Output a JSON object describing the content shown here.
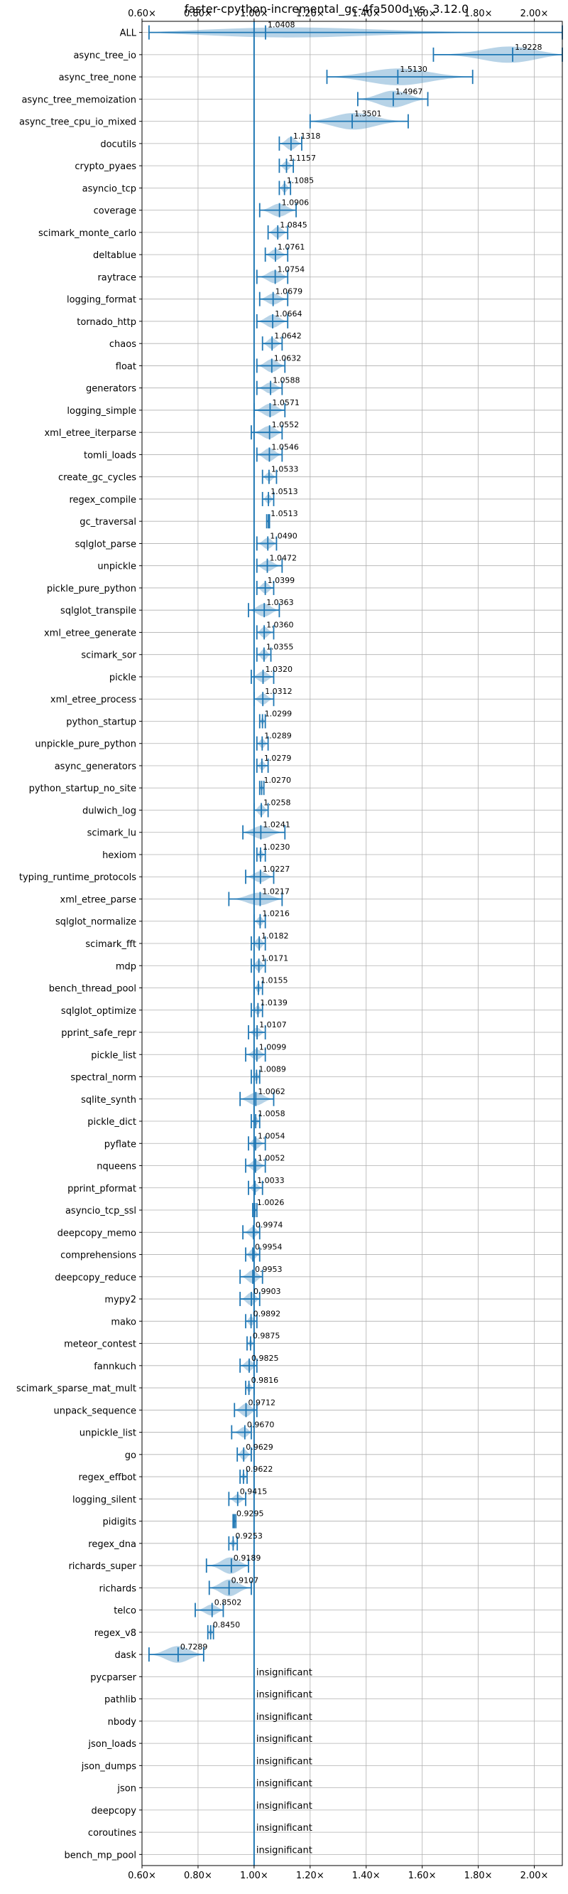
{
  "chart_data": {
    "type": "violin",
    "title": "faster-cpython-incremental_gc-4fa500d vs. 3.12.0",
    "xlim": [
      0.6,
      2.1
    ],
    "x_ticks": [
      0.6,
      0.8,
      1.0,
      1.2,
      1.4,
      1.6,
      1.8,
      2.0
    ],
    "x_tick_labels": [
      "0.60×",
      "0.80×",
      "1.00×",
      "1.20×",
      "1.40×",
      "1.60×",
      "1.80×",
      "2.00×"
    ],
    "reference_line": 1.0,
    "grid": true,
    "colors": {
      "violin": "#1f77b4",
      "grid": "#b0b0b0",
      "axis": "#000000"
    },
    "insignificant_label": "insignificant",
    "benchmarks": [
      {
        "name": "ALL",
        "mean": 1.0408,
        "min": 0.625,
        "max": 2.1,
        "width": 0.6
      },
      {
        "name": "async_tree_io",
        "mean": 1.9228,
        "min": 1.64,
        "max": 2.1,
        "width": 0.9
      },
      {
        "name": "async_tree_none",
        "mean": 1.513,
        "min": 1.26,
        "max": 1.78,
        "width": 0.9
      },
      {
        "name": "async_tree_memoization",
        "mean": 1.4967,
        "min": 1.37,
        "max": 1.62,
        "width": 0.9
      },
      {
        "name": "async_tree_cpu_io_mixed",
        "mean": 1.3501,
        "min": 1.2,
        "max": 1.55,
        "width": 0.9
      },
      {
        "name": "docutils",
        "mean": 1.1318,
        "min": 1.09,
        "max": 1.17,
        "width": 0.7
      },
      {
        "name": "crypto_pyaes",
        "mean": 1.1157,
        "min": 1.09,
        "max": 1.14,
        "width": 0.5
      },
      {
        "name": "asyncio_tcp",
        "mean": 1.1085,
        "min": 1.09,
        "max": 1.13,
        "width": 0.5
      },
      {
        "name": "coverage",
        "mean": 1.0906,
        "min": 1.02,
        "max": 1.15,
        "width": 0.7
      },
      {
        "name": "scimark_monte_carlo",
        "mean": 1.0845,
        "min": 1.05,
        "max": 1.12,
        "width": 0.6
      },
      {
        "name": "deltablue",
        "mean": 1.0761,
        "min": 1.04,
        "max": 1.12,
        "width": 0.6
      },
      {
        "name": "raytrace",
        "mean": 1.0754,
        "min": 1.01,
        "max": 1.12,
        "width": 0.7
      },
      {
        "name": "logging_format",
        "mean": 1.0679,
        "min": 1.02,
        "max": 1.12,
        "width": 0.6
      },
      {
        "name": "tornado_http",
        "mean": 1.0664,
        "min": 1.01,
        "max": 1.12,
        "width": 0.7
      },
      {
        "name": "chaos",
        "mean": 1.0642,
        "min": 1.03,
        "max": 1.1,
        "width": 0.6
      },
      {
        "name": "float",
        "mean": 1.0632,
        "min": 1.01,
        "max": 1.11,
        "width": 0.7
      },
      {
        "name": "generators",
        "mean": 1.0588,
        "min": 1.01,
        "max": 1.1,
        "width": 0.6
      },
      {
        "name": "logging_simple",
        "mean": 1.0571,
        "min": 1.0,
        "max": 1.11,
        "width": 0.7
      },
      {
        "name": "xml_etree_iterparse",
        "mean": 1.0552,
        "min": 0.99,
        "max": 1.1,
        "width": 0.7
      },
      {
        "name": "tomli_loads",
        "mean": 1.0546,
        "min": 1.01,
        "max": 1.1,
        "width": 0.7
      },
      {
        "name": "create_gc_cycles",
        "mean": 1.0533,
        "min": 1.03,
        "max": 1.08,
        "width": 0.5
      },
      {
        "name": "regex_compile",
        "mean": 1.0513,
        "min": 1.03,
        "max": 1.07,
        "width": 0.5
      },
      {
        "name": "gc_traversal",
        "mean": 1.0513,
        "min": 1.045,
        "max": 1.055,
        "width": 0.3
      },
      {
        "name": "sqlglot_parse",
        "mean": 1.049,
        "min": 1.01,
        "max": 1.08,
        "width": 0.6
      },
      {
        "name": "unpickle",
        "mean": 1.0472,
        "min": 1.01,
        "max": 1.1,
        "width": 0.6
      },
      {
        "name": "pickle_pure_python",
        "mean": 1.0399,
        "min": 1.01,
        "max": 1.07,
        "width": 0.6
      },
      {
        "name": "sqlglot_transpile",
        "mean": 1.0363,
        "min": 0.98,
        "max": 1.09,
        "width": 0.7
      },
      {
        "name": "xml_etree_generate",
        "mean": 1.036,
        "min": 1.01,
        "max": 1.07,
        "width": 0.6
      },
      {
        "name": "scimark_sor",
        "mean": 1.0355,
        "min": 1.01,
        "max": 1.06,
        "width": 0.6
      },
      {
        "name": "pickle",
        "mean": 1.032,
        "min": 0.99,
        "max": 1.07,
        "width": 0.6
      },
      {
        "name": "xml_etree_process",
        "mean": 1.0312,
        "min": 1.0,
        "max": 1.07,
        "width": 0.6
      },
      {
        "name": "python_startup",
        "mean": 1.0299,
        "min": 1.02,
        "max": 1.04,
        "width": 0.4
      },
      {
        "name": "unpickle_pure_python",
        "mean": 1.0289,
        "min": 1.01,
        "max": 1.05,
        "width": 0.5
      },
      {
        "name": "async_generators",
        "mean": 1.0279,
        "min": 1.01,
        "max": 1.05,
        "width": 0.5
      },
      {
        "name": "python_startup_no_site",
        "mean": 1.027,
        "min": 1.02,
        "max": 1.035,
        "width": 0.4
      },
      {
        "name": "dulwich_log",
        "mean": 1.0258,
        "min": 1.0,
        "max": 1.05,
        "width": 0.6
      },
      {
        "name": "scimark_lu",
        "mean": 1.0241,
        "min": 0.96,
        "max": 1.11,
        "width": 0.7
      },
      {
        "name": "hexiom",
        "mean": 1.023,
        "min": 1.01,
        "max": 1.04,
        "width": 0.5
      },
      {
        "name": "typing_runtime_protocols",
        "mean": 1.0227,
        "min": 0.97,
        "max": 1.07,
        "width": 0.6
      },
      {
        "name": "xml_etree_parse",
        "mean": 1.0217,
        "min": 0.91,
        "max": 1.1,
        "width": 0.7
      },
      {
        "name": "sqlglot_normalize",
        "mean": 1.0216,
        "min": 1.0,
        "max": 1.04,
        "width": 0.5
      },
      {
        "name": "scimark_fft",
        "mean": 1.0182,
        "min": 0.99,
        "max": 1.04,
        "width": 0.6
      },
      {
        "name": "mdp",
        "mean": 1.0171,
        "min": 0.99,
        "max": 1.04,
        "width": 0.6
      },
      {
        "name": "bench_thread_pool",
        "mean": 1.0155,
        "min": 1.0,
        "max": 1.03,
        "width": 0.5
      },
      {
        "name": "sqlglot_optimize",
        "mean": 1.0139,
        "min": 0.99,
        "max": 1.03,
        "width": 0.5
      },
      {
        "name": "pprint_safe_repr",
        "mean": 1.0107,
        "min": 0.98,
        "max": 1.04,
        "width": 0.5
      },
      {
        "name": "pickle_list",
        "mean": 1.0099,
        "min": 0.97,
        "max": 1.04,
        "width": 0.6
      },
      {
        "name": "spectral_norm",
        "mean": 1.0089,
        "min": 0.99,
        "max": 1.02,
        "width": 0.5
      },
      {
        "name": "sqlite_synth",
        "mean": 1.0062,
        "min": 0.95,
        "max": 1.07,
        "width": 0.7
      },
      {
        "name": "pickle_dict",
        "mean": 1.0058,
        "min": 0.99,
        "max": 1.02,
        "width": 0.5
      },
      {
        "name": "pyflate",
        "mean": 1.0054,
        "min": 0.98,
        "max": 1.04,
        "width": 0.6
      },
      {
        "name": "nqueens",
        "mean": 1.0052,
        "min": 0.97,
        "max": 1.04,
        "width": 0.6
      },
      {
        "name": "pprint_pformat",
        "mean": 1.0033,
        "min": 0.98,
        "max": 1.03,
        "width": 0.5
      },
      {
        "name": "asyncio_tcp_ssl",
        "mean": 1.0026,
        "min": 0.995,
        "max": 1.01,
        "width": 0.3
      },
      {
        "name": "deepcopy_memo",
        "mean": 0.9974,
        "min": 0.96,
        "max": 1.02,
        "width": 0.6
      },
      {
        "name": "comprehensions",
        "mean": 0.9954,
        "min": 0.97,
        "max": 1.02,
        "width": 0.6
      },
      {
        "name": "deepcopy_reduce",
        "mean": 0.9953,
        "min": 0.95,
        "max": 1.03,
        "width": 0.7
      },
      {
        "name": "mypy2",
        "mean": 0.9903,
        "min": 0.95,
        "max": 1.02,
        "width": 0.7
      },
      {
        "name": "mako",
        "mean": 0.9892,
        "min": 0.97,
        "max": 1.01,
        "width": 0.5
      },
      {
        "name": "meteor_contest",
        "mean": 0.9875,
        "min": 0.975,
        "max": 1.0,
        "width": 0.4
      },
      {
        "name": "fannkuch",
        "mean": 0.9825,
        "min": 0.95,
        "max": 1.01,
        "width": 0.6
      },
      {
        "name": "scimark_sparse_mat_mult",
        "mean": 0.9816,
        "min": 0.97,
        "max": 1.0,
        "width": 0.5
      },
      {
        "name": "unpack_sequence",
        "mean": 0.9712,
        "min": 0.93,
        "max": 1.01,
        "width": 0.7
      },
      {
        "name": "unpickle_list",
        "mean": 0.967,
        "min": 0.92,
        "max": 0.99,
        "width": 0.6
      },
      {
        "name": "go",
        "mean": 0.9629,
        "min": 0.94,
        "max": 0.99,
        "width": 0.6
      },
      {
        "name": "regex_effbot",
        "mean": 0.9622,
        "min": 0.95,
        "max": 0.975,
        "width": 0.4
      },
      {
        "name": "logging_silent",
        "mean": 0.9415,
        "min": 0.91,
        "max": 0.97,
        "width": 0.5
      },
      {
        "name": "pidigits",
        "mean": 0.9295,
        "min": 0.925,
        "max": 0.935,
        "width": 0.3
      },
      {
        "name": "regex_dna",
        "mean": 0.9253,
        "min": 0.91,
        "max": 0.94,
        "width": 0.4
      },
      {
        "name": "richards_super",
        "mean": 0.9189,
        "min": 0.83,
        "max": 0.98,
        "width": 0.9
      },
      {
        "name": "richards",
        "mean": 0.9107,
        "min": 0.84,
        "max": 0.99,
        "width": 0.9
      },
      {
        "name": "telco",
        "mean": 0.8502,
        "min": 0.79,
        "max": 0.89,
        "width": 0.6
      },
      {
        "name": "regex_v8",
        "mean": 0.845,
        "min": 0.835,
        "max": 0.855,
        "width": 0.4
      },
      {
        "name": "dask",
        "mean": 0.7289,
        "min": 0.625,
        "max": 0.82,
        "width": 0.9
      },
      {
        "name": "pycparser",
        "mean": null,
        "insignificant": true
      },
      {
        "name": "pathlib",
        "mean": null,
        "insignificant": true
      },
      {
        "name": "nbody",
        "mean": null,
        "insignificant": true
      },
      {
        "name": "json_loads",
        "mean": null,
        "insignificant": true
      },
      {
        "name": "json_dumps",
        "mean": null,
        "insignificant": true
      },
      {
        "name": "json",
        "mean": null,
        "insignificant": true
      },
      {
        "name": "deepcopy",
        "mean": null,
        "insignificant": true
      },
      {
        "name": "coroutines",
        "mean": null,
        "insignificant": true
      },
      {
        "name": "bench_mp_pool",
        "mean": null,
        "insignificant": true
      }
    ]
  }
}
